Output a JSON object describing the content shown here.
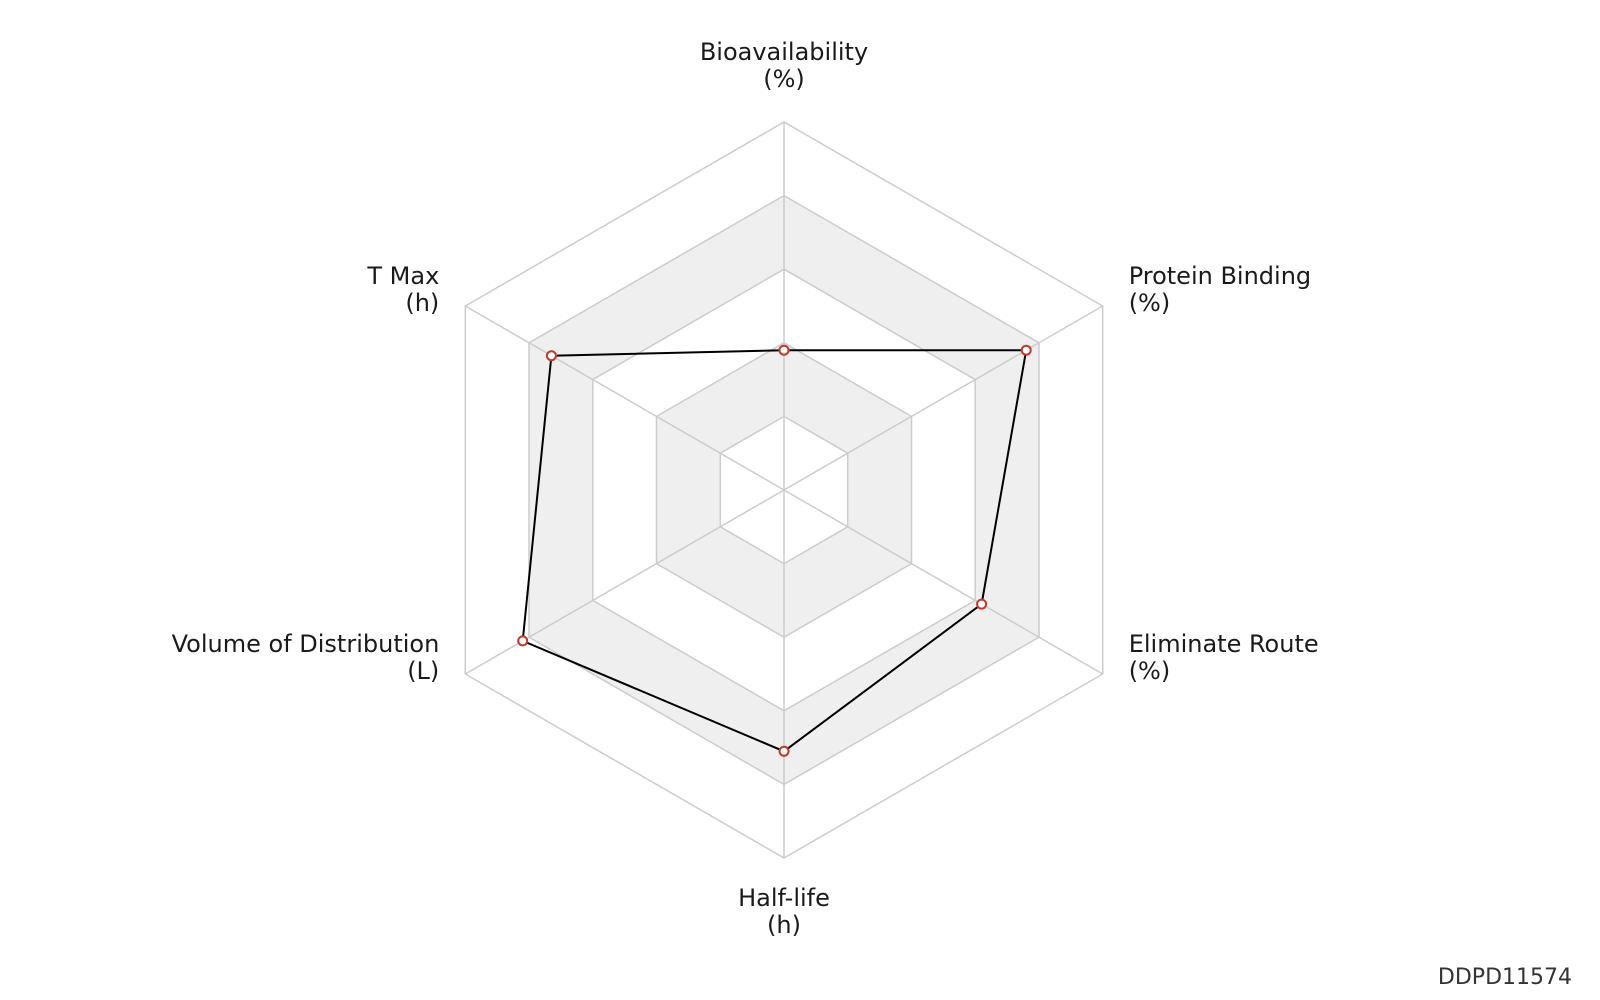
{
  "chart_data": {
    "type": "radar",
    "axes": [
      {
        "name": "Bioavailability",
        "unit": "(%)"
      },
      {
        "name": "Protein Binding",
        "unit": "(%)"
      },
      {
        "name": "Eliminate Route",
        "unit": "(%)"
      },
      {
        "name": "Half-life",
        "unit": "(h)"
      },
      {
        "name": "Volume of Distribution",
        "unit": "(L)"
      },
      {
        "name": "T Max",
        "unit": "(h)"
      }
    ],
    "levels": 5,
    "range": [
      0,
      1
    ],
    "values": [
      0.38,
      0.76,
      0.62,
      0.71,
      0.82,
      0.73
    ],
    "grid": true,
    "alternating_bands": true
  },
  "colors": {
    "grid": "#cccccc",
    "band": "#efefef",
    "series_line": "#000000",
    "marker_stroke": "#c0392b",
    "marker_fill": "#ffffff"
  },
  "watermark": "DDPD11574"
}
